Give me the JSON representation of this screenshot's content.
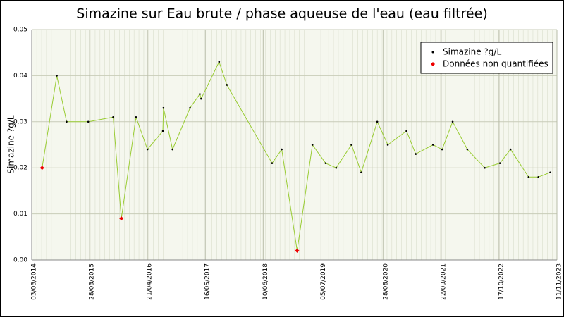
{
  "chart_data": {
    "type": "line",
    "title": "Simazine sur Eau brute / phase aqueuse de l'eau (eau filtrée)",
    "y_label": "Simazine ?g/L",
    "x": [
      "12/05/2014",
      "19/08/2014",
      "24/10/2014",
      "19/03/2015",
      "03/09/2015",
      "28/10/2015",
      "04/02/2016",
      "21/04/2016",
      "03/08/2016",
      "07/08/2016",
      "07/10/2016",
      "02/02/2017",
      "09/04/2017",
      "18/04/2017",
      "17/08/2017",
      "08/10/2017",
      "09/08/2018",
      "13/10/2018",
      "25/01/2019",
      "08/05/2019",
      "05/08/2019",
      "15/10/2019",
      "26/01/2020",
      "01/04/2020",
      "18/07/2020",
      "27/09/2020",
      "31/01/2021",
      "03/04/2021",
      "29/07/2021",
      "28/09/2021",
      "08/12/2021",
      "17/03/2022",
      "12/07/2022",
      "23/10/2022",
      "02/01/2023",
      "04/05/2023",
      "09/07/2023",
      "27/09/2023"
    ],
    "series": [
      {
        "name": "Simazine ?g/L",
        "color": "#99cc33",
        "marker_color": "#000000",
        "values": [
          0.02,
          0.04,
          0.03,
          0.03,
          0.031,
          0.009,
          0.031,
          0.024,
          0.028,
          0.033,
          0.024,
          0.033,
          0.036,
          0.035,
          0.043,
          0.038,
          0.021,
          0.024,
          0.002,
          0.025,
          0.021,
          0.02,
          0.025,
          0.019,
          0.03,
          0.025,
          0.028,
          0.023,
          0.025,
          0.024,
          0.03,
          0.024,
          0.02,
          0.021,
          0.024,
          0.018,
          0.018,
          0.019
        ]
      },
      {
        "name": "Données non quantifiées",
        "color": "#ee0000",
        "values": [
          0.02,
          null,
          null,
          null,
          null,
          0.009,
          null,
          null,
          null,
          null,
          null,
          null,
          null,
          null,
          null,
          null,
          null,
          null,
          0.002,
          null,
          null,
          null,
          null,
          null,
          null,
          null,
          null,
          null,
          null,
          null,
          null,
          null,
          null,
          null,
          null,
          null,
          null,
          null
        ]
      }
    ],
    "xlim": [
      "03/03/2014",
      "11/11/2023"
    ],
    "xticks": [
      "03/03/2014",
      "28/03/2015",
      "21/04/2016",
      "16/05/2017",
      "10/06/2018",
      "05/07/2019",
      "28/08/2020",
      "22/09/2021",
      "17/10/2022",
      "11/11/2023"
    ],
    "ylim": [
      0,
      0.05
    ],
    "yticks": [
      {
        "value": 0,
        "label": "0.00"
      },
      0.01,
      0.02,
      0.03,
      0.04,
      0.05
    ],
    "grid": true,
    "legend": "top-right"
  }
}
